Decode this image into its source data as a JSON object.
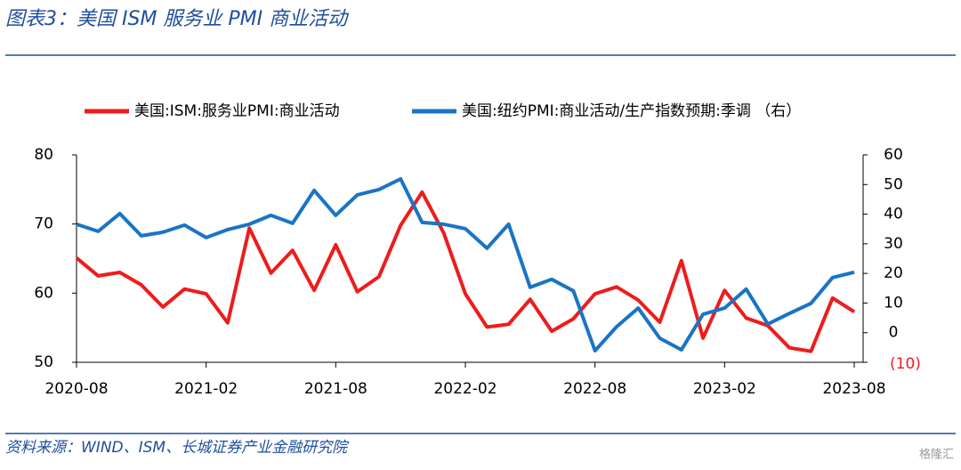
{
  "title": "图表3：美国 ISM 服务业 PMI 商业活动",
  "source": "资料来源：WIND、ISM、长城证券产业金融研究院",
  "watermark": "格隆汇",
  "chart_data": {
    "type": "line",
    "categories": [
      "2020-08",
      null,
      null,
      null,
      null,
      null,
      "2021-02",
      null,
      null,
      null,
      null,
      null,
      "2021-08",
      null,
      null,
      null,
      null,
      null,
      "2022-02",
      null,
      null,
      null,
      null,
      null,
      "2022-08",
      null,
      null,
      null,
      null,
      null,
      "2023-02",
      null,
      null,
      null,
      null,
      null,
      "2023-08"
    ],
    "series": [
      {
        "name": "美国:ISM:服务业PMI:商业活动",
        "color": "#ee1c1c",
        "axis": "y",
        "values": [
          65.1,
          62.5,
          63.0,
          61.2,
          58.0,
          60.6,
          59.9,
          55.7,
          69.4,
          62.9,
          66.2,
          60.4,
          67.0,
          60.2,
          62.4,
          69.8,
          74.6,
          68.7,
          59.9,
          55.1,
          55.5,
          59.1,
          54.5,
          56.3,
          59.9,
          60.9,
          59.0,
          55.8,
          64.7,
          53.5,
          60.4,
          56.4,
          55.3,
          52.1,
          51.6,
          59.3,
          57.3
        ]
      },
      {
        "name": "美国:纽约PMI:商业活动/生产指数预期:季调 （右）",
        "color": "#1a74c4",
        "axis": "y2",
        "values": [
          36.6,
          34.2,
          40.2,
          32.7,
          33.9,
          36.3,
          32.1,
          34.8,
          36.6,
          39.6,
          36.9,
          48.0,
          39.6,
          46.5,
          48.3,
          51.9,
          37.2,
          36.6,
          35.1,
          28.5,
          36.6,
          15.3,
          18.0,
          14.1,
          -6.1,
          2.0,
          8.3,
          -1.9,
          -5.8,
          6.2,
          8.3,
          14.7,
          2.9,
          6.5,
          9.9,
          18.6,
          20.4
        ]
      }
    ],
    "ylim": [
      50,
      80
    ],
    "yticks": [
      50,
      60,
      70,
      80
    ],
    "y2lim": [
      -10,
      60
    ],
    "y2ticks": [
      {
        "value": -10,
        "label": "(10)"
      },
      0,
      10,
      20,
      30,
      40,
      50,
      60
    ],
    "negative_tick_color": "#ee1c1c",
    "legend": "top",
    "grid": false
  }
}
